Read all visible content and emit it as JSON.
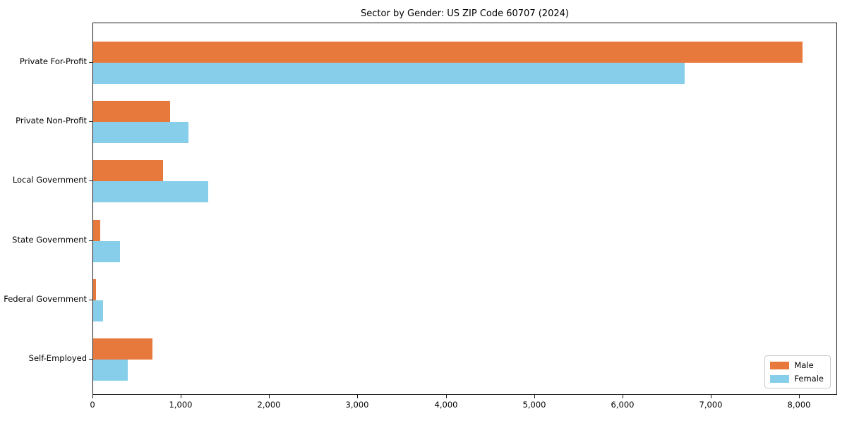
{
  "chart_data": {
    "type": "bar",
    "orientation": "horizontal",
    "title": "Sector by Gender: US ZIP Code 60707 (2024)",
    "categories": [
      "Private For-Profit",
      "Private Non-Profit",
      "Local Government",
      "State Government",
      "Federal Government",
      "Self-Employed"
    ],
    "series": [
      {
        "name": "Male",
        "color": "#e8793d",
        "values": [
          8030,
          870,
          790,
          80,
          35,
          670
        ]
      },
      {
        "name": "Female",
        "color": "#87ceeb",
        "values": [
          6700,
          1080,
          1300,
          300,
          110,
          390
        ]
      }
    ],
    "xlabel": "",
    "ylabel": "",
    "xlim": [
      0,
      8430
    ],
    "xticks": [
      0,
      1000,
      2000,
      3000,
      4000,
      5000,
      6000,
      7000,
      8000
    ],
    "xtick_labels": [
      "0",
      "1,000",
      "2,000",
      "3,000",
      "4,000",
      "5,000",
      "6,000",
      "7,000",
      "8,000"
    ],
    "grid": false,
    "legend_position": "lower right",
    "frame_color": "#1a1a1a",
    "background_color": "#ffffff"
  }
}
